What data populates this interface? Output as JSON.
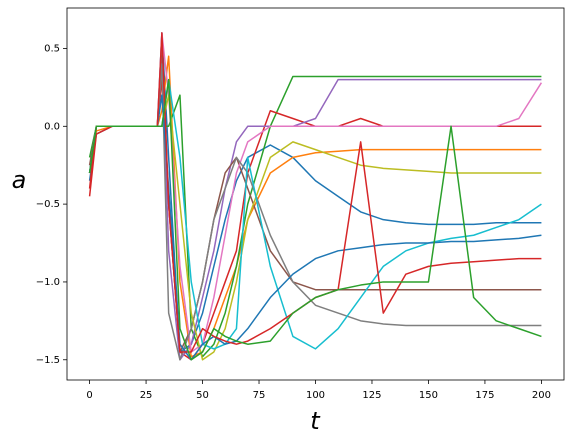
{
  "chart_data": {
    "type": "line",
    "xlabel": "t",
    "ylabel": "a",
    "xlim": [
      -10,
      210
    ],
    "ylim": [
      -1.63,
      0.76
    ],
    "xticks": [
      0,
      25,
      50,
      75,
      100,
      125,
      150,
      175,
      200
    ],
    "yticks": [
      {
        "value": -1.5,
        "label": "−1.5"
      },
      {
        "value": -1.0,
        "label": "−1.0"
      },
      {
        "value": -0.5,
        "label": "−0.5"
      },
      {
        "value": 0.0,
        "label": "0.0"
      },
      0.5
    ],
    "x": [
      0,
      3,
      10,
      25,
      30,
      32,
      35,
      40,
      45,
      50,
      55,
      60,
      65,
      70,
      80,
      90,
      100,
      110,
      120,
      130,
      140,
      150,
      160,
      170,
      180,
      190,
      200
    ],
    "series": [
      {
        "color": "#1f77b4",
        "values": [
          -0.35,
          -0.05,
          0,
          0,
          0,
          0.6,
          -0.2,
          -1.45,
          -1.4,
          -1.2,
          -0.9,
          -0.6,
          -0.35,
          -0.2,
          -0.12,
          -0.2,
          -0.35,
          -0.45,
          -0.55,
          -0.6,
          -0.62,
          -0.63,
          -0.63,
          -0.63,
          -0.62,
          -0.62,
          -0.62
        ]
      },
      {
        "color": "#ff7f0e",
        "values": [
          -0.3,
          -0.03,
          0,
          0,
          0,
          0.1,
          0.45,
          -1.0,
          -1.48,
          -1.45,
          -1.3,
          -1.1,
          -0.9,
          -0.6,
          -0.3,
          -0.2,
          -0.17,
          -0.16,
          -0.15,
          -0.15,
          -0.15,
          -0.15,
          -0.15,
          -0.15,
          -0.15,
          -0.15,
          -0.15
        ]
      },
      {
        "color": "#2ca02c",
        "values": [
          -0.2,
          0,
          0,
          0,
          0,
          0,
          0,
          0.2,
          -1.3,
          -1.48,
          -1.4,
          -1.2,
          -0.9,
          -0.5,
          0,
          0.32,
          0.32,
          0.32,
          0.32,
          0.32,
          0.32,
          0.32,
          0.32,
          0.32,
          0.32,
          0.32,
          0.32
        ]
      },
      {
        "color": "#d62728",
        "values": [
          -0.45,
          -0.05,
          0,
          0,
          0,
          0.3,
          -0.5,
          -1.45,
          -1.5,
          -1.4,
          -1.2,
          -1.0,
          -0.8,
          -0.3,
          0.1,
          0.05,
          0,
          0,
          0.05,
          0,
          0,
          0,
          0,
          0,
          0,
          0,
          0
        ]
      },
      {
        "color": "#9467bd",
        "values": [
          -0.3,
          0,
          0,
          0,
          0,
          0.5,
          -0.8,
          -1.5,
          -1.4,
          -1.1,
          -0.8,
          -0.4,
          -0.1,
          0,
          0,
          0,
          0.05,
          0.3,
          0.3,
          0.3,
          0.3,
          0.3,
          0.3,
          0.3,
          0.3,
          0.3,
          0.3
        ]
      },
      {
        "color": "#8c564b",
        "values": [
          -0.25,
          0,
          0,
          0,
          0,
          0.5,
          -0.5,
          -1.45,
          -1.3,
          -1.0,
          -0.6,
          -0.3,
          -0.2,
          -0.4,
          -0.8,
          -1.0,
          -1.05,
          -1.05,
          -1.05,
          -1.05,
          -1.05,
          -1.05,
          -1.05,
          -1.05,
          -1.05,
          -1.05,
          -1.05
        ]
      },
      {
        "color": "#e377c2",
        "values": [
          -0.3,
          0,
          0,
          0,
          0,
          0.6,
          0.2,
          -0.9,
          -1.45,
          -1.4,
          -1.1,
          -0.7,
          -0.3,
          -0.1,
          0,
          0,
          0,
          0,
          0,
          0,
          0,
          0,
          0,
          0,
          0,
          0.05,
          0.28
        ]
      },
      {
        "color": "#7f7f7f",
        "values": [
          -0.3,
          0,
          0,
          0,
          0,
          0.4,
          -1.2,
          -1.5,
          -1.3,
          -1.0,
          -0.6,
          -0.4,
          -0.2,
          -0.3,
          -0.7,
          -1.0,
          -1.15,
          -1.2,
          -1.25,
          -1.27,
          -1.28,
          -1.28,
          -1.28,
          -1.28,
          -1.28,
          -1.28,
          -1.28
        ]
      },
      {
        "color": "#bcbd22",
        "values": [
          -0.3,
          0,
          0,
          0,
          0,
          0,
          0.2,
          -0.5,
          -1.2,
          -1.5,
          -1.45,
          -1.3,
          -1.0,
          -0.6,
          -0.2,
          -0.1,
          -0.15,
          -0.2,
          -0.25,
          -0.27,
          -0.28,
          -0.29,
          -0.3,
          -0.3,
          -0.3,
          -0.3,
          -0.3
        ]
      },
      {
        "color": "#17becf",
        "values": [
          -0.3,
          0,
          0,
          0,
          0,
          0,
          0.3,
          -0.2,
          -1.0,
          -1.4,
          -1.43,
          -1.4,
          -1.3,
          -0.2,
          -0.9,
          -1.35,
          -1.43,
          -1.3,
          -1.1,
          -0.9,
          -0.8,
          -0.75,
          -0.72,
          -0.7,
          -0.65,
          -0.6,
          -0.5
        ]
      },
      {
        "color": "#1f77b4",
        "values": [
          -0.3,
          0,
          0,
          0,
          0,
          0.2,
          -0.4,
          -1.4,
          -1.5,
          -1.4,
          -1.35,
          -1.4,
          -1.38,
          -1.3,
          -1.1,
          -0.95,
          -0.85,
          -0.8,
          -0.78,
          -0.76,
          -0.75,
          -0.75,
          -0.74,
          -0.74,
          -0.73,
          -0.72,
          -0.7
        ]
      },
      {
        "color": "#d62728",
        "values": [
          -0.4,
          0,
          0,
          0,
          0,
          0.6,
          -0.5,
          -1.45,
          -1.45,
          -1.3,
          -1.35,
          -1.38,
          -1.4,
          -1.38,
          -1.3,
          -1.2,
          -1.1,
          -1.05,
          -0.1,
          -1.2,
          -0.95,
          -0.9,
          -0.88,
          -0.87,
          -0.86,
          -0.85,
          -0.85
        ]
      },
      {
        "color": "#2ca02c",
        "values": [
          -0.3,
          0,
          0,
          0,
          0,
          0,
          0.3,
          -1.3,
          -1.5,
          -1.45,
          -1.3,
          -1.35,
          -1.38,
          -1.4,
          -1.38,
          -1.2,
          -1.1,
          -1.05,
          -1.02,
          -1.0,
          -1.0,
          -1.0,
          0,
          -1.1,
          -1.25,
          -1.3,
          -1.35
        ]
      }
    ]
  }
}
